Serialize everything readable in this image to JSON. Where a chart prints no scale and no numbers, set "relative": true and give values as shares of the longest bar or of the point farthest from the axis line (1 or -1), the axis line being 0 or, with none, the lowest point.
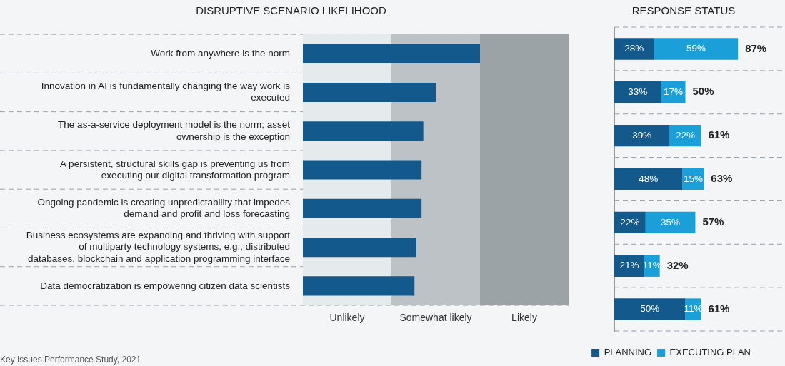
{
  "chart_data": [
    {
      "type": "bar",
      "orientation": "horizontal",
      "title": "DISRUPTIVE SCENARIO LIKELIHOOD",
      "categories": [
        "Work from anywhere is the norm",
        "Innovation in AI is fundamentally changing the way work is executed",
        "The as-a-service deployment model is the norm; asset ownership is the exception",
        "A persistent, structural skills gap is preventing us from executing our digital transformation program",
        "Ongoing pandemic is creating unpredictability that impedes demand and profit and loss forecasting",
        "Business ecosystems are expanding and thriving with support of multiparty technology systems, e.g., distributed databases, blockchain and application programming interface",
        "Data democratization is empowering citizen data scientists"
      ],
      "values": [
        1,
        0.75,
        0.68,
        0.67,
        0.67,
        0.64,
        0.63
      ],
      "color": "#13598b",
      "relative": true,
      "bands": [
        {
          "axis": "x",
          "from": 0,
          "to": 0.5,
          "label": "Unlikely",
          "color": "#e5eaed"
        },
        {
          "axis": "x",
          "from": 0.5,
          "to": 1,
          "label": "Somewhat likely",
          "color": "#bcc2c5"
        },
        {
          "axis": "x",
          "from": 1,
          "to": 1.5,
          "label": "Likely",
          "color": "#9ba3a6"
        }
      ],
      "grid": "y",
      "annotations": [
        "Key Issues Performance Study, 2021"
      ]
    },
    {
      "type": "bar",
      "orientation": "horizontal",
      "stacked": true,
      "title": "RESPONSE STATUS",
      "categories": [
        null,
        null,
        null,
        null,
        null,
        null,
        null
      ],
      "series": [
        {
          "name": "PLANNING",
          "color": "#13598b",
          "values": [
            28,
            33,
            39,
            48,
            22,
            21,
            50
          ],
          "value_labels": [
            "28%",
            "33%",
            "39%",
            "48%",
            "22%",
            "21%",
            "50%"
          ]
        },
        {
          "name": "EXECUTING PLAN",
          "color": "#1a9fd9",
          "values": [
            59,
            17,
            22,
            15,
            35,
            11,
            11
          ],
          "value_labels": [
            "59%",
            "17%",
            "22%",
            "15%",
            "35%",
            "11%",
            "11%"
          ]
        }
      ],
      "totals": [
        "87%",
        "50%",
        "61%",
        "63%",
        "57%",
        "32%",
        "61%"
      ],
      "tick_labels": false,
      "grid": "y",
      "legend": "bottom right"
    }
  ]
}
